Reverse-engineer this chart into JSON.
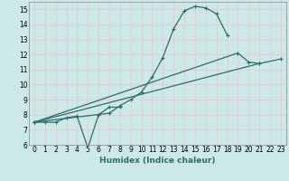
{
  "xlabel": "Humidex (Indice chaleur)",
  "xlim": [
    -0.5,
    23.5
  ],
  "ylim": [
    6,
    15.5
  ],
  "xticks": [
    0,
    1,
    2,
    3,
    4,
    5,
    6,
    7,
    8,
    9,
    10,
    11,
    12,
    13,
    14,
    15,
    16,
    17,
    18,
    19,
    20,
    21,
    22,
    23
  ],
  "yticks": [
    6,
    7,
    8,
    9,
    10,
    11,
    12,
    13,
    14,
    15
  ],
  "bg_color": "#cce8e8",
  "line_color": "#2b6e6a",
  "grid_color": "#e8c8c8",
  "curves": [
    {
      "x": [
        0,
        1,
        2,
        3,
        4,
        5,
        6,
        7,
        8
      ],
      "y": [
        7.5,
        7.5,
        7.5,
        7.8,
        7.9,
        5.8,
        8.0,
        8.5,
        8.5
      ]
    },
    {
      "x": [
        0,
        7,
        8,
        9,
        10,
        11,
        12,
        13,
        14,
        15,
        16,
        17,
        18
      ],
      "y": [
        7.5,
        8.1,
        8.6,
        9.0,
        9.5,
        10.5,
        11.8,
        13.7,
        14.9,
        15.2,
        15.1,
        14.7,
        13.3
      ]
    },
    {
      "x": [
        0,
        19,
        20,
        21,
        23
      ],
      "y": [
        7.5,
        12.1,
        11.5,
        11.4,
        11.7
      ]
    },
    {
      "x": [
        0,
        21
      ],
      "y": [
        7.5,
        11.4
      ]
    }
  ]
}
